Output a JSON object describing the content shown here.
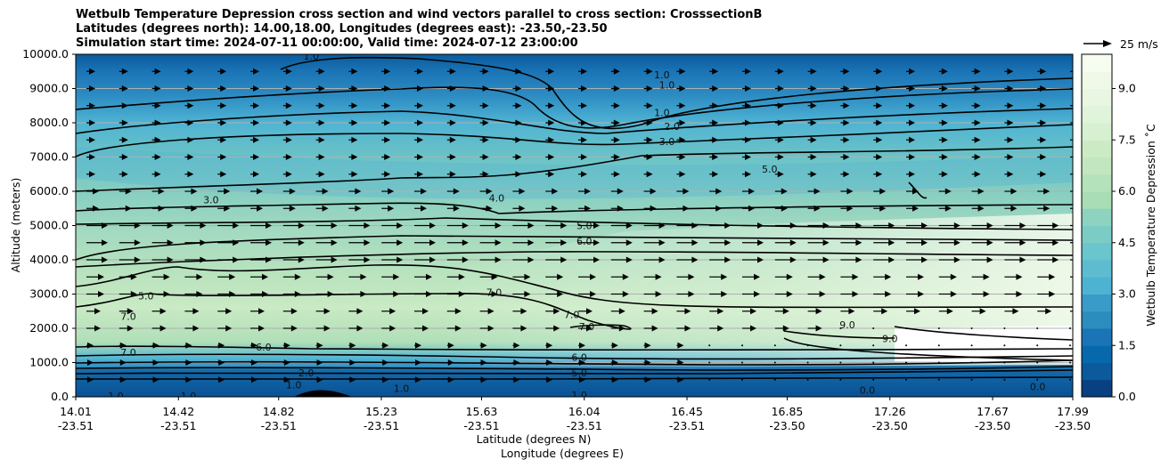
{
  "chart_data": {
    "type": "heatmap",
    "title_lines": [
      "Wetbulb Temperature Depression cross section and wind vectors parallel to cross section: CrosssectionB",
      "Latitudes (degrees north): 14.00,18.00, Longitudes (degrees east): -23.50,-23.50",
      "Simulation start time: 2024-07-11 00:00:00, Valid time: 2024-07-12 23:00:00"
    ],
    "ylabel": "Altitude (meters)",
    "xlabel_lat": "Latitude (degrees N)",
    "xlabel_lon": "Longitude (degrees E)",
    "colorbar_label": "Wetbulb Temperature Depression $^\\circ$C",
    "colorbar_label_display": "Wetbulb Temperature Depression ˚C",
    "ylim": [
      0,
      10000
    ],
    "y_ticks": [
      "0.0",
      "1000.0",
      "2000.0",
      "3000.0",
      "4000.0",
      "5000.0",
      "6000.0",
      "7000.0",
      "8000.0",
      "9000.0",
      "10000.0"
    ],
    "y_tick_values": [
      0,
      1000,
      2000,
      3000,
      4000,
      5000,
      6000,
      7000,
      8000,
      9000,
      10000
    ],
    "x_ticks_lat": [
      "14.01",
      "14.42",
      "14.82",
      "15.23",
      "15.63",
      "16.04",
      "16.45",
      "16.85",
      "17.26",
      "17.67",
      "17.99"
    ],
    "x_ticks_lon": [
      "-23.51",
      "-23.51",
      "-23.51",
      "-23.51",
      "-23.51",
      "-23.51",
      "-23.51",
      "-23.50",
      "-23.50",
      "-23.50",
      "-23.50"
    ],
    "x_tick_values": [
      14.01,
      14.42,
      14.82,
      15.23,
      15.63,
      16.04,
      16.45,
      16.85,
      17.26,
      17.67,
      17.99
    ],
    "xlim": [
      14.01,
      17.99
    ],
    "colorbar_ticks": [
      "0.0",
      "1.5",
      "3.0",
      "4.5",
      "6.0",
      "7.5",
      "9.0"
    ],
    "colorbar_tick_values": [
      0,
      1.5,
      3,
      4.5,
      6,
      7.5,
      9
    ],
    "colorbar_range": [
      0,
      10
    ],
    "grid": "horizontal",
    "quiver_key": "25 m/s",
    "contour_labels": [
      {
        "text": "1.0",
        "lat": 14.95,
        "alt": 9950
      },
      {
        "text": "1.0",
        "lat": 16.35,
        "alt": 9400
      },
      {
        "text": "1.0",
        "lat": 16.37,
        "alt": 9100
      },
      {
        "text": "1.0",
        "lat": 16.35,
        "alt": 8300
      },
      {
        "text": "2.0",
        "lat": 16.39,
        "alt": 7900
      },
      {
        "text": "3.0",
        "lat": 16.37,
        "alt": 7450
      },
      {
        "text": "5.0",
        "lat": 16.78,
        "alt": 6650
      },
      {
        "text": "3.0",
        "lat": 14.55,
        "alt": 5750
      },
      {
        "text": "4.0",
        "lat": 15.69,
        "alt": 5800
      },
      {
        "text": "5.0",
        "lat": 16.04,
        "alt": 5000
      },
      {
        "text": "6.0",
        "lat": 16.04,
        "alt": 4550
      },
      {
        "text": "5.0",
        "lat": 14.29,
        "alt": 2950
      },
      {
        "text": "7.0",
        "lat": 15.68,
        "alt": 3050
      },
      {
        "text": "7.0",
        "lat": 14.22,
        "alt": 2350
      },
      {
        "text": "7.0",
        "lat": 15.99,
        "alt": 2400
      },
      {
        "text": "7.0",
        "lat": 16.05,
        "alt": 2050
      },
      {
        "text": "9.0",
        "lat": 17.09,
        "alt": 2100
      },
      {
        "text": "9.0",
        "lat": 17.26,
        "alt": 1700
      },
      {
        "text": "7.0",
        "lat": 14.22,
        "alt": 1300
      },
      {
        "text": "6.0",
        "lat": 14.76,
        "alt": 1450
      },
      {
        "text": "6.0",
        "lat": 16.02,
        "alt": 1150
      },
      {
        "text": "5.0",
        "lat": 16.02,
        "alt": 700
      },
      {
        "text": "2.0",
        "lat": 14.93,
        "alt": 700
      },
      {
        "text": "1.0",
        "lat": 14.88,
        "alt": 350
      },
      {
        "text": "1.0",
        "lat": 15.31,
        "alt": 250
      },
      {
        "text": "1.0",
        "lat": 14.46,
        "alt": 20
      },
      {
        "text": "1.0",
        "lat": 14.17,
        "alt": 20
      },
      {
        "text": "1.0",
        "lat": 16.02,
        "alt": 50
      },
      {
        "text": "0.0",
        "lat": 17.17,
        "alt": 200
      },
      {
        "text": "0.0",
        "lat": 17.85,
        "alt": 300
      }
    ]
  }
}
